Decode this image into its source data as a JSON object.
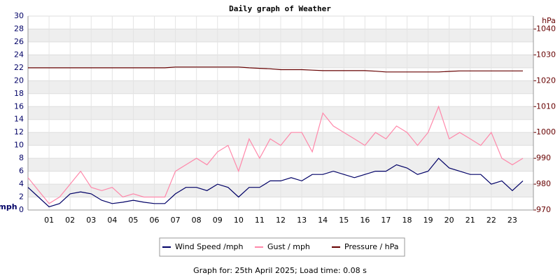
{
  "chart_data": {
    "type": "line",
    "title": "Daily graph of Weather",
    "footer": "Graph for: 25th April 2025; Load time: 0.08 s",
    "y_label": "mph",
    "y2_label": "hPa",
    "grid": true,
    "x": [
      0,
      0.5,
      1,
      1.5,
      2,
      2.5,
      3,
      3.5,
      4,
      4.5,
      5,
      5.5,
      6,
      6.5,
      7,
      7.5,
      8,
      8.5,
      9,
      9.5,
      10,
      10.5,
      11,
      11.5,
      12,
      12.5,
      13,
      13.5,
      14,
      14.5,
      15,
      15.5,
      16,
      16.5,
      17,
      17.5,
      18,
      18.5,
      19,
      19.5,
      20,
      20.5,
      21,
      21.5,
      22,
      22.5,
      23,
      23.5
    ],
    "xlim": [
      0,
      24
    ],
    "xticks": [
      {
        "value": 1,
        "label": "01"
      },
      {
        "value": 2,
        "label": "02"
      },
      {
        "value": 3,
        "label": "03"
      },
      {
        "value": 4,
        "label": "04"
      },
      {
        "value": 5,
        "label": "05"
      },
      {
        "value": 6,
        "label": "06"
      },
      {
        "value": 7,
        "label": "07"
      },
      {
        "value": 8,
        "label": "08"
      },
      {
        "value": 9,
        "label": "09"
      },
      {
        "value": 10,
        "label": "10"
      },
      {
        "value": 11,
        "label": "11"
      },
      {
        "value": 12,
        "label": "12"
      },
      {
        "value": 13,
        "label": "13"
      },
      {
        "value": 14,
        "label": "14"
      },
      {
        "value": 15,
        "label": "15"
      },
      {
        "value": 16,
        "label": "16"
      },
      {
        "value": 17,
        "label": "17"
      },
      {
        "value": 18,
        "label": "18"
      },
      {
        "value": 19,
        "label": "19"
      },
      {
        "value": 20,
        "label": "20"
      },
      {
        "value": 21,
        "label": "21"
      },
      {
        "value": 22,
        "label": "22"
      },
      {
        "value": 23,
        "label": "23"
      }
    ],
    "ylim": [
      0,
      30
    ],
    "yticks": [
      0,
      2,
      4,
      6,
      8,
      10,
      12,
      14,
      16,
      18,
      20,
      22,
      24,
      26,
      28,
      30
    ],
    "y2lim": [
      970,
      1045
    ],
    "y2ticks": [
      970,
      980,
      990,
      1000,
      1010,
      1020,
      1030,
      1040
    ],
    "series": [
      {
        "name": "Wind Speed /mph",
        "color": "#000066",
        "values": [
          3.5,
          2,
          0.5,
          1,
          2.5,
          2.8,
          2.5,
          1.5,
          1,
          1.2,
          1.5,
          1.2,
          1,
          1,
          2.5,
          3.5,
          3.5,
          3,
          4,
          3.5,
          2,
          3.5,
          3.5,
          4.5,
          4.5,
          5,
          4.5,
          5.5,
          5.5,
          6,
          5.5,
          5,
          5.5,
          6,
          6,
          7,
          6.5,
          5.5,
          6,
          8,
          6.5,
          6,
          5.5,
          5.5,
          4,
          4.5,
          3,
          4.5
        ]
      },
      {
        "name": "Gust / mph",
        "color": "#ff88aa",
        "values": [
          5,
          3,
          1,
          2,
          4,
          6,
          3.5,
          3,
          3.5,
          2,
          2.5,
          2,
          2,
          2,
          6,
          7,
          8,
          7,
          9,
          10,
          6,
          11,
          8,
          11,
          10,
          12,
          12,
          9,
          15,
          13,
          12,
          11,
          10,
          12,
          11,
          13,
          12,
          10,
          12,
          16,
          11,
          12,
          11,
          10,
          12,
          8,
          7,
          8
        ]
      },
      {
        "name": "Pressure / hPa",
        "color": "#660000",
        "axis": "y2",
        "values": [
          1025,
          1025,
          1025,
          1025,
          1025,
          1025,
          1025,
          1025,
          1025,
          1025,
          1025,
          1025,
          1025,
          1025,
          1025.3,
          1025.3,
          1025.3,
          1025.3,
          1025.3,
          1025.3,
          1025.3,
          1025,
          1024.8,
          1024.6,
          1024.3,
          1024.3,
          1024.3,
          1024.1,
          1023.9,
          1023.9,
          1023.9,
          1023.9,
          1023.9,
          1023.7,
          1023.4,
          1023.4,
          1023.4,
          1023.4,
          1023.4,
          1023.4,
          1023.6,
          1023.8,
          1023.8,
          1023.8,
          1023.8,
          1023.8,
          1023.8,
          1023.8
        ]
      }
    ]
  }
}
